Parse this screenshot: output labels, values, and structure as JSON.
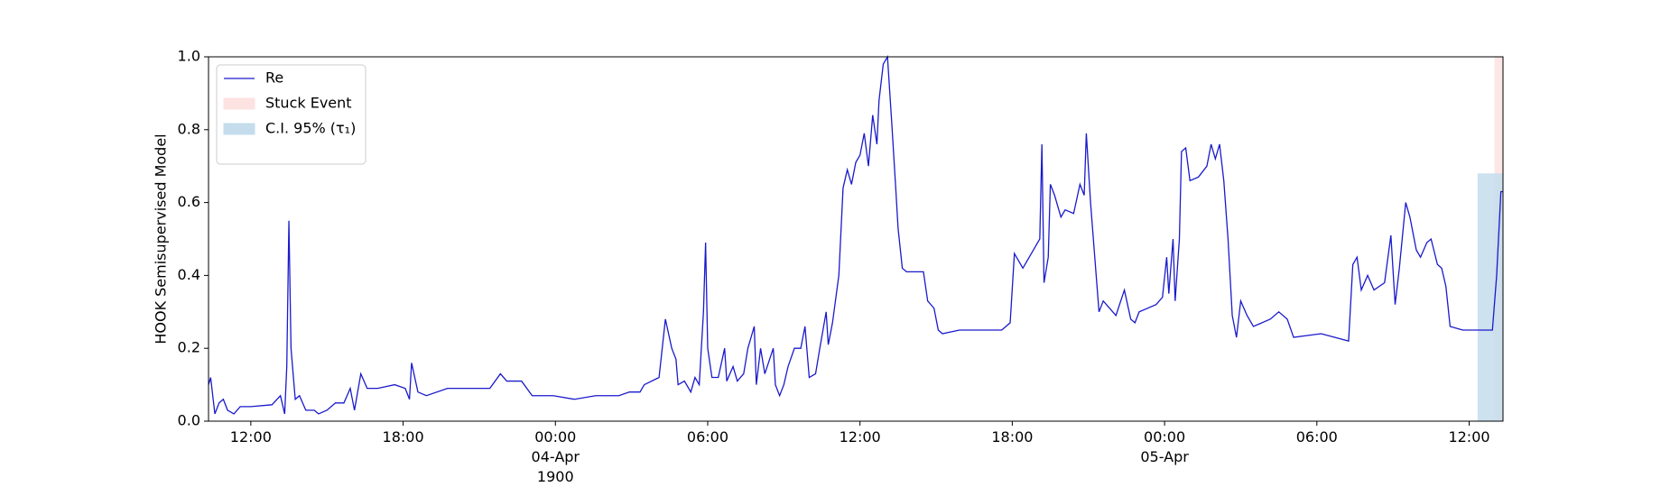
{
  "chart_data": {
    "type": "line",
    "ylabel": "HOOK Semisupervised Model",
    "legend": "upper left",
    "xlim": [
      "1900-04-03T10:20",
      "1900-04-05T13:20"
    ],
    "xticks": [
      {
        "value": "1900-04-03T12:00",
        "label": "12:00"
      },
      {
        "value": "1900-04-03T18:00",
        "label": "18:00"
      },
      {
        "value": "1900-04-04T00:00",
        "label": "00:00\n04-Apr\n1900"
      },
      {
        "value": "1900-04-04T06:00",
        "label": "06:00"
      },
      {
        "value": "1900-04-04T12:00",
        "label": "12:00"
      },
      {
        "value": "1900-04-04T18:00",
        "label": "18:00"
      },
      {
        "value": "1900-04-05T00:00",
        "label": "00:00\n05-Apr"
      },
      {
        "value": "1900-04-05T06:00",
        "label": "06:00"
      },
      {
        "value": "1900-04-05T12:00",
        "label": "12:00"
      }
    ],
    "ylim": [
      0,
      1
    ],
    "yticks": [
      {
        "value": 0,
        "label": "0.0"
      },
      {
        "value": 0.2,
        "label": "0.2"
      },
      {
        "value": 0.4,
        "label": "0.4"
      },
      {
        "value": 0.6,
        "label": "0.6"
      },
      {
        "value": 0.8,
        "label": "0.8"
      },
      {
        "value": 1,
        "label": "1.0"
      }
    ],
    "x": [
      "1900-04-03T10:20",
      "1900-04-03T10:25",
      "1900-04-03T10:35",
      "1900-04-03T10:45",
      "1900-04-03T10:55",
      "1900-04-03T11:05",
      "1900-04-03T11:20",
      "1900-04-03T11:35",
      "1900-04-03T12:00",
      "1900-04-03T12:50",
      "1900-04-03T13:10",
      "1900-04-03T13:20",
      "1900-04-03T13:25",
      "1900-04-03T13:30",
      "1900-04-03T13:35",
      "1900-04-03T13:45",
      "1900-04-03T13:55",
      "1900-04-03T14:10",
      "1900-04-03T14:30",
      "1900-04-03T14:40",
      "1900-04-03T15:00",
      "1900-04-03T15:20",
      "1900-04-03T15:40",
      "1900-04-03T15:55",
      "1900-04-03T16:05",
      "1900-04-03T16:20",
      "1900-04-03T16:35",
      "1900-04-03T17:00",
      "1900-04-03T17:40",
      "1900-04-03T18:05",
      "1900-04-03T18:15",
      "1900-04-03T18:20",
      "1900-04-03T18:35",
      "1900-04-03T18:55",
      "1900-04-03T19:45",
      "1900-04-03T21:25",
      "1900-04-03T21:50",
      "1900-04-03T22:05",
      "1900-04-03T22:40",
      "1900-04-03T23:05",
      "1900-04-03T23:55",
      "1900-04-04T00:45",
      "1900-04-04T01:35",
      "1900-04-04T02:30",
      "1900-04-04T02:55",
      "1900-04-04T03:20",
      "1900-04-04T03:30",
      "1900-04-04T04:05",
      "1900-04-04T04:20",
      "1900-04-04T04:35",
      "1900-04-04T04:45",
      "1900-04-04T04:50",
      "1900-04-04T05:05",
      "1900-04-04T05:20",
      "1900-04-04T05:30",
      "1900-04-04T05:40",
      "1900-04-04T05:50",
      "1900-04-04T05:55",
      "1900-04-04T06:00",
      "1900-04-04T06:10",
      "1900-04-04T06:25",
      "1900-04-04T06:40",
      "1900-04-04T06:45",
      "1900-04-04T07:00",
      "1900-04-04T07:10",
      "1900-04-04T07:25",
      "1900-04-04T07:35",
      "1900-04-04T07:50",
      "1900-04-04T07:55",
      "1900-04-04T08:05",
      "1900-04-04T08:15",
      "1900-04-04T08:35",
      "1900-04-04T08:40",
      "1900-04-04T08:50",
      "1900-04-04T09:00",
      "1900-04-04T09:10",
      "1900-04-04T09:25",
      "1900-04-04T09:40",
      "1900-04-04T09:50",
      "1900-04-04T10:00",
      "1900-04-04T10:15",
      "1900-04-04T10:25",
      "1900-04-04T10:40",
      "1900-04-04T10:45",
      "1900-04-04T10:55",
      "1900-04-04T11:10",
      "1900-04-04T11:20",
      "1900-04-04T11:30",
      "1900-04-04T11:40",
      "1900-04-04T11:50",
      "1900-04-04T12:00",
      "1900-04-04T12:10",
      "1900-04-04T12:20",
      "1900-04-04T12:30",
      "1900-04-04T12:40",
      "1900-04-04T12:45",
      "1900-04-04T12:55",
      "1900-04-04T13:05",
      "1900-04-04T13:15",
      "1900-04-04T13:25",
      "1900-04-04T13:30",
      "1900-04-04T13:40",
      "1900-04-04T13:50",
      "1900-04-04T14:30",
      "1900-04-04T14:40",
      "1900-04-04T14:55",
      "1900-04-04T15:05",
      "1900-04-04T15:15",
      "1900-04-04T15:55",
      "1900-04-04T17:35",
      "1900-04-04T17:55",
      "1900-04-04T18:05",
      "1900-04-04T18:25",
      "1900-04-04T18:45",
      "1900-04-04T19:05",
      "1900-04-04T19:10",
      "1900-04-04T19:15",
      "1900-04-04T19:25",
      "1900-04-04T19:30",
      "1900-04-04T19:40",
      "1900-04-04T19:55",
      "1900-04-04T20:05",
      "1900-04-04T20:25",
      "1900-04-04T20:40",
      "1900-04-04T20:50",
      "1900-04-04T20:55",
      "1900-04-04T21:05",
      "1900-04-04T21:15",
      "1900-04-04T21:25",
      "1900-04-04T21:35",
      "1900-04-04T22:05",
      "1900-04-04T22:25",
      "1900-04-04T22:40",
      "1900-04-04T22:50",
      "1900-04-04T23:00",
      "1900-04-04T23:40",
      "1900-04-04T23:55",
      "1900-04-05T00:05",
      "1900-04-05T00:10",
      "1900-04-05T00:20",
      "1900-04-05T00:25",
      "1900-04-05T00:35",
      "1900-04-05T00:40",
      "1900-04-05T00:50",
      "1900-04-05T01:00",
      "1900-04-05T01:20",
      "1900-04-05T01:40",
      "1900-04-05T01:50",
      "1900-04-05T02:00",
      "1900-04-05T02:10",
      "1900-04-05T02:20",
      "1900-04-05T02:30",
      "1900-04-05T02:40",
      "1900-04-05T02:50",
      "1900-04-05T03:00",
      "1900-04-05T03:15",
      "1900-04-05T03:30",
      "1900-04-05T04:10",
      "1900-04-05T04:30",
      "1900-04-05T04:50",
      "1900-04-05T05:05",
      "1900-04-05T06:10",
      "1900-04-05T07:15",
      "1900-04-05T07:25",
      "1900-04-05T07:35",
      "1900-04-05T07:45",
      "1900-04-05T08:00",
      "1900-04-05T08:15",
      "1900-04-05T08:40",
      "1900-04-05T08:55",
      "1900-04-05T09:05",
      "1900-04-05T09:15",
      "1900-04-05T09:30",
      "1900-04-05T09:40",
      "1900-04-05T09:55",
      "1900-04-05T10:05",
      "1900-04-05T10:20",
      "1900-04-05T10:30",
      "1900-04-05T10:45",
      "1900-04-05T10:55",
      "1900-04-05T11:05",
      "1900-04-05T11:15",
      "1900-04-05T11:45",
      "1900-04-05T12:15",
      "1900-04-05T12:55",
      "1900-04-05T13:05",
      "1900-04-05T13:15",
      "1900-04-05T13:20"
    ],
    "series": [
      {
        "name": "Re",
        "color": "#1a1acc",
        "values": [
          0.1,
          0.12,
          0.02,
          0.05,
          0.06,
          0.03,
          0.02,
          0.04,
          0.04,
          0.045,
          0.07,
          0.02,
          0.15,
          0.55,
          0.2,
          0.06,
          0.07,
          0.03,
          0.03,
          0.02,
          0.03,
          0.05,
          0.05,
          0.09,
          0.03,
          0.13,
          0.09,
          0.09,
          0.1,
          0.09,
          0.06,
          0.16,
          0.08,
          0.07,
          0.09,
          0.09,
          0.13,
          0.11,
          0.11,
          0.07,
          0.07,
          0.06,
          0.07,
          0.07,
          0.08,
          0.08,
          0.1,
          0.12,
          0.28,
          0.2,
          0.17,
          0.1,
          0.11,
          0.08,
          0.12,
          0.1,
          0.3,
          0.49,
          0.2,
          0.12,
          0.12,
          0.2,
          0.11,
          0.15,
          0.11,
          0.13,
          0.2,
          0.26,
          0.1,
          0.2,
          0.13,
          0.2,
          0.1,
          0.07,
          0.1,
          0.15,
          0.2,
          0.2,
          0.26,
          0.12,
          0.13,
          0.2,
          0.3,
          0.21,
          0.27,
          0.4,
          0.64,
          0.69,
          0.65,
          0.71,
          0.73,
          0.79,
          0.7,
          0.84,
          0.76,
          0.88,
          0.98,
          1.0,
          0.82,
          0.63,
          0.53,
          0.42,
          0.41,
          0.41,
          0.33,
          0.31,
          0.25,
          0.24,
          0.25,
          0.25,
          0.27,
          0.46,
          0.42,
          0.46,
          0.5,
          0.76,
          0.38,
          0.45,
          0.65,
          0.62,
          0.56,
          0.58,
          0.57,
          0.65,
          0.62,
          0.79,
          0.6,
          0.45,
          0.3,
          0.33,
          0.29,
          0.36,
          0.28,
          0.27,
          0.3,
          0.32,
          0.34,
          0.45,
          0.35,
          0.5,
          0.33,
          0.5,
          0.74,
          0.75,
          0.66,
          0.67,
          0.7,
          0.76,
          0.72,
          0.76,
          0.66,
          0.5,
          0.29,
          0.23,
          0.33,
          0.29,
          0.26,
          0.28,
          0.3,
          0.28,
          0.23,
          0.24,
          0.22,
          0.43,
          0.45,
          0.36,
          0.4,
          0.36,
          0.38,
          0.51,
          0.32,
          0.42,
          0.6,
          0.56,
          0.47,
          0.45,
          0.49,
          0.5,
          0.43,
          0.42,
          0.37,
          0.26,
          0.25,
          0.25,
          0.25,
          0.4,
          0.63,
          0.63
        ]
      }
    ],
    "regions": [
      {
        "name": "Stuck Event",
        "color": "#fde2e2",
        "start": "1900-04-05T13:00",
        "end": "1900-04-05T13:20",
        "y": [
          0,
          1
        ]
      },
      {
        "name": "C.I. 95% (τ₁)",
        "color": "#c4dcec",
        "start": "1900-04-05T12:20",
        "end": "1900-04-05T13:20",
        "y": [
          0,
          0.68
        ]
      }
    ]
  }
}
